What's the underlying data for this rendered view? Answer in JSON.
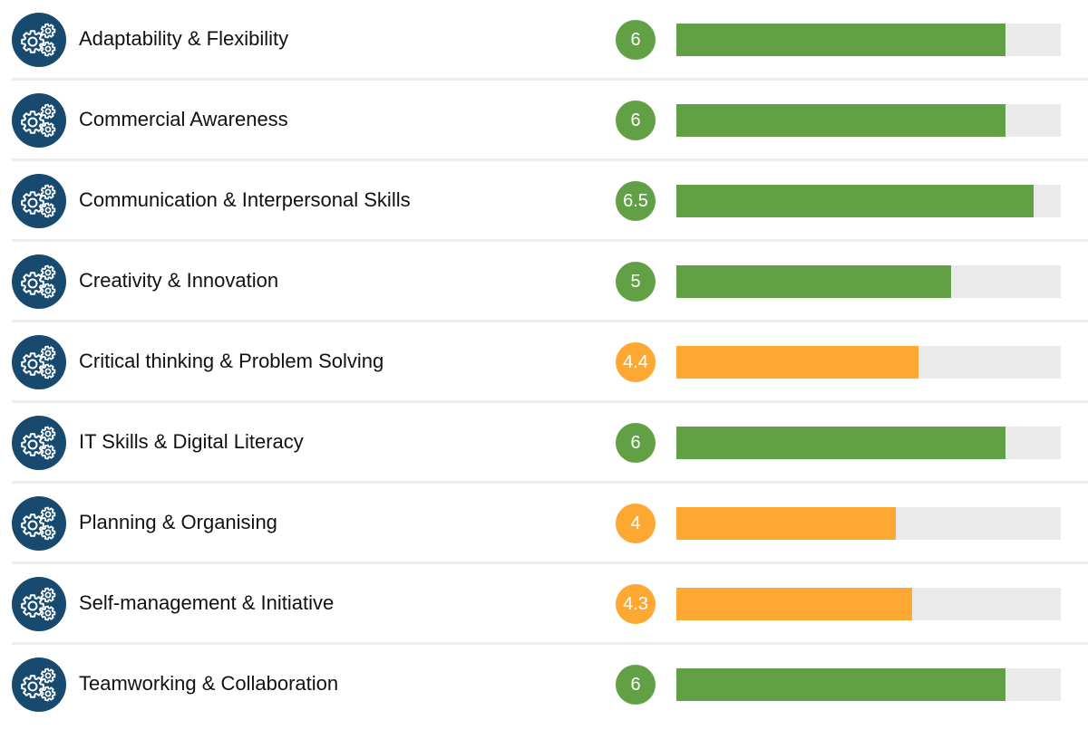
{
  "colors": {
    "icon_bg": "#174a6e",
    "good": "#61a044",
    "warn": "#fea834",
    "track": "#eaeaea"
  },
  "scale_max": 7,
  "skills": [
    {
      "label": "Adaptability & Flexibility",
      "score": "6",
      "value": 6,
      "status": "good",
      "icon": "gears-icon"
    },
    {
      "label": "Commercial Awareness",
      "score": "6",
      "value": 6,
      "status": "good",
      "icon": "gears-icon"
    },
    {
      "label": "Communication & Interpersonal Skills",
      "score": "6.5",
      "value": 6.5,
      "status": "good",
      "icon": "gears-icon"
    },
    {
      "label": "Creativity & Innovation",
      "score": "5",
      "value": 5,
      "status": "good",
      "icon": "gears-icon"
    },
    {
      "label": "Critical thinking & Problem Solving",
      "score": "4.4",
      "value": 4.4,
      "status": "warn",
      "icon": "gears-icon"
    },
    {
      "label": "IT Skills & Digital Literacy",
      "score": "6",
      "value": 6,
      "status": "good",
      "icon": "gears-icon"
    },
    {
      "label": "Planning & Organising",
      "score": "4",
      "value": 4,
      "status": "warn",
      "icon": "gears-icon"
    },
    {
      "label": "Self-management & Initiative",
      "score": "4.3",
      "value": 4.3,
      "status": "warn",
      "icon": "gears-icon"
    },
    {
      "label": "Teamworking & Collaboration",
      "score": "6",
      "value": 6,
      "status": "good",
      "icon": "gears-icon"
    }
  ]
}
